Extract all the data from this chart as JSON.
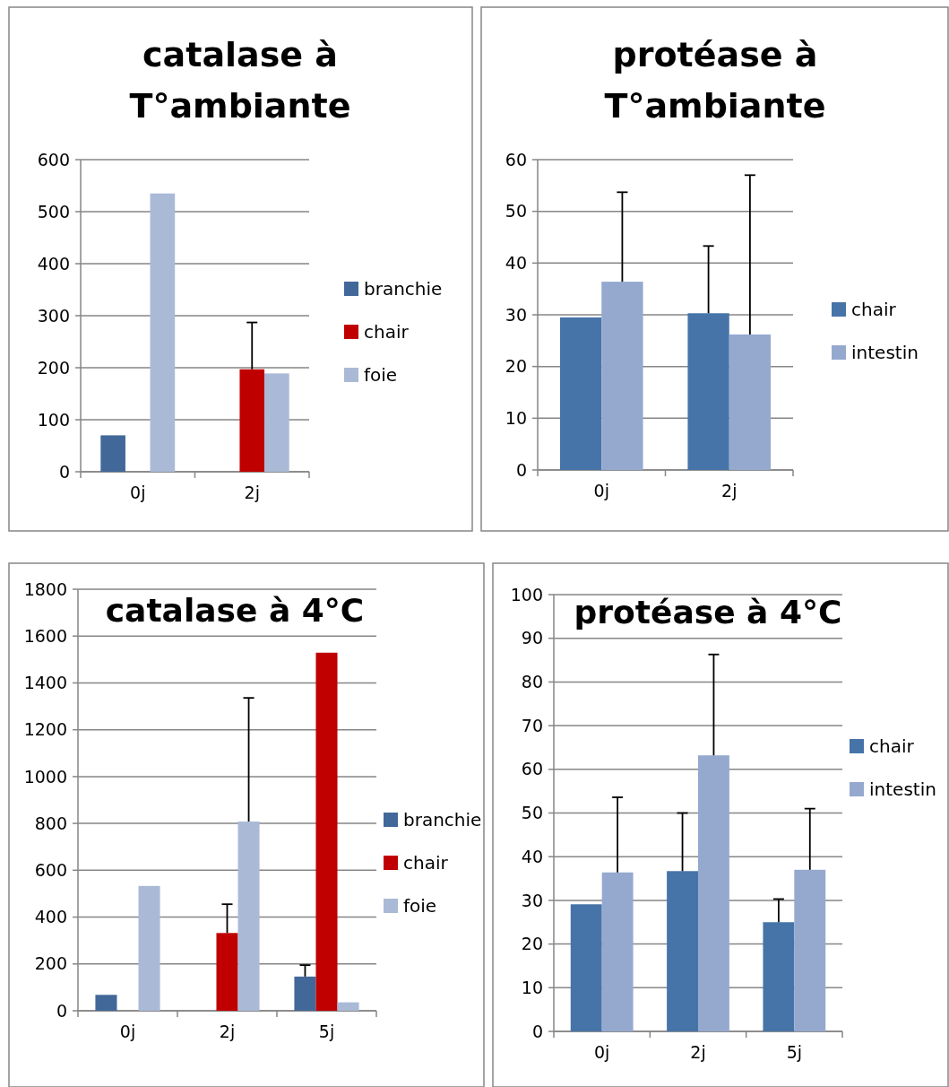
{
  "chart_data": [
    {
      "type": "bar",
      "title": "catalase à T°ambiante",
      "categories": [
        "0j",
        "2j"
      ],
      "series": [
        {
          "name": "branchie",
          "color": "#426899",
          "values": [
            70,
            0
          ]
        },
        {
          "name": "chair",
          "color": "#c00000",
          "values": [
            0,
            197
          ],
          "errors": [
            null,
            [
              197,
              287
            ]
          ]
        },
        {
          "name": "foie",
          "color": "#aab9d6",
          "values": [
            535,
            189
          ]
        }
      ],
      "ylim": [
        0,
        600
      ],
      "yticks": [
        0,
        100,
        200,
        300,
        400,
        500,
        600
      ],
      "grid": "y",
      "legend": "right"
    },
    {
      "type": "bar",
      "title": "protéase à T°ambiante",
      "categories": [
        "0j",
        "2j"
      ],
      "series": [
        {
          "name": "chair",
          "color": "#4674a8",
          "values": [
            29.5,
            30.3
          ],
          "errors": [
            null,
            [
              30.3,
              43.3
            ]
          ]
        },
        {
          "name": "intestin",
          "color": "#95a9cf",
          "values": [
            36.4,
            26.2
          ],
          "errors": [
            [
              36.4,
              53.7
            ],
            [
              26.2,
              57
            ]
          ]
        }
      ],
      "ylim": [
        0,
        60
      ],
      "yticks": [
        0,
        10,
        20,
        30,
        40,
        50,
        60
      ],
      "grid": "y",
      "legend": "right"
    },
    {
      "type": "bar",
      "title": "catalase à 4°C",
      "categories": [
        "0j",
        "2j",
        "5j"
      ],
      "series": [
        {
          "name": "branchie",
          "color": "#426899",
          "values": [
            68,
            0,
            146
          ],
          "errors": [
            null,
            null,
            [
              146,
              195
            ]
          ]
        },
        {
          "name": "chair",
          "color": "#c00000",
          "values": [
            0,
            332,
            1529
          ],
          "errors": [
            null,
            [
              332,
              455
            ],
            null
          ]
        },
        {
          "name": "foie",
          "color": "#aab9d6",
          "values": [
            533,
            808,
            36
          ],
          "errors": [
            null,
            [
              808,
              1336
            ],
            null
          ]
        }
      ],
      "ylim": [
        0,
        1800
      ],
      "yticks": [
        0,
        200,
        400,
        600,
        800,
        1000,
        1200,
        1400,
        1600,
        1800
      ],
      "grid": "y",
      "legend": "right"
    },
    {
      "type": "bar",
      "title": "protéase à 4°C",
      "categories": [
        "0j",
        "2j",
        "5j"
      ],
      "series": [
        {
          "name": "chair",
          "color": "#4674a8",
          "values": [
            29.1,
            36.7,
            25
          ],
          "errors": [
            null,
            [
              36.7,
              50
            ],
            [
              25,
              30.3
            ]
          ]
        },
        {
          "name": "intestin",
          "color": "#95a9cf",
          "values": [
            36.4,
            63.2,
            37
          ],
          "errors": [
            [
              36.4,
              53.6
            ],
            [
              63.2,
              86.3
            ],
            [
              37,
              51
            ]
          ]
        }
      ],
      "ylim": [
        0,
        100
      ],
      "yticks": [
        0,
        10,
        20,
        30,
        40,
        50,
        60,
        70,
        80,
        90,
        100
      ],
      "grid": "y",
      "legend": "right"
    }
  ]
}
